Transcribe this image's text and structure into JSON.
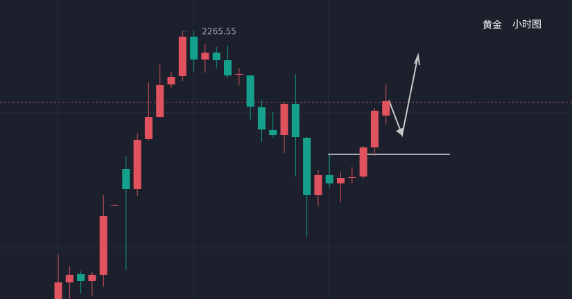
{
  "chart_data": {
    "type": "candlestick",
    "title": "黄金",
    "subtitle": "小时图",
    "annotation": "2265.55",
    "categories": [
      null,
      null,
      null,
      null,
      null,
      null,
      null,
      null,
      null,
      null,
      null,
      null,
      null,
      null,
      null,
      null,
      null,
      null,
      null,
      null,
      null,
      null,
      null,
      null,
      null,
      null,
      null,
      null,
      null,
      null
    ],
    "open": [
      2226.85,
      2229.25,
      2230.45,
      2229.45,
      2230.35,
      2240.35,
      2245.65,
      2242.75,
      2249.95,
      2253.15,
      2257.85,
      2259.05,
      2264.75,
      2261.45,
      2262.45,
      2261.35,
      2259.25,
      2259.15,
      2254.55,
      2251.25,
      2250.55,
      2255.05,
      2250.15,
      2241.85,
      2244.75,
      2243.55,
      2244.35,
      2244.55,
      2248.75,
      2253.35
    ],
    "high": [
      2233.25,
      2231.55,
      2230.85,
      2230.75,
      2241.85,
      2240.55,
      2247.55,
      2250.85,
      2258.15,
      2260.75,
      2259.65,
      2265.55,
      2265.55,
      2263.75,
      2263.25,
      2263.45,
      2260.25,
      2259.25,
      2255.65,
      2253.85,
      2255.25,
      2259.35,
      2250.25,
      2245.45,
      2247.75,
      2245.25,
      2245.95,
      2248.95,
      2254.45,
      2257.85
    ],
    "low": [
      2226.85,
      2226.85,
      2227.65,
      2227.25,
      2228.65,
      2240.35,
      2231.05,
      2241.75,
      2249.75,
      2253.05,
      2257.35,
      2258.35,
      2259.65,
      2259.55,
      2260.15,
      2258.75,
      2257.75,
      2252.75,
      2249.55,
      2250.15,
      2247.95,
      2244.55,
      2235.85,
      2240.25,
      2242.95,
      2240.85,
      2243.55,
      2244.25,
      2247.55,
      2252.05
    ],
    "close": [
      2229.25,
      2230.35,
      2229.45,
      2230.35,
      2238.85,
      2240.45,
      2242.75,
      2249.85,
      2253.15,
      2257.75,
      2258.95,
      2264.75,
      2261.45,
      2262.45,
      2261.35,
      2259.15,
      2259.35,
      2254.65,
      2251.35,
      2250.55,
      2255.05,
      2250.25,
      2241.85,
      2244.75,
      2243.55,
      2244.35,
      2244.45,
      2248.75,
      2254.05,
      2255.45
    ],
    "up_color": "#e0525e",
    "down_color": "#14a08a",
    "ylim": [
      2226.85,
      2270.05
    ]
  }
}
